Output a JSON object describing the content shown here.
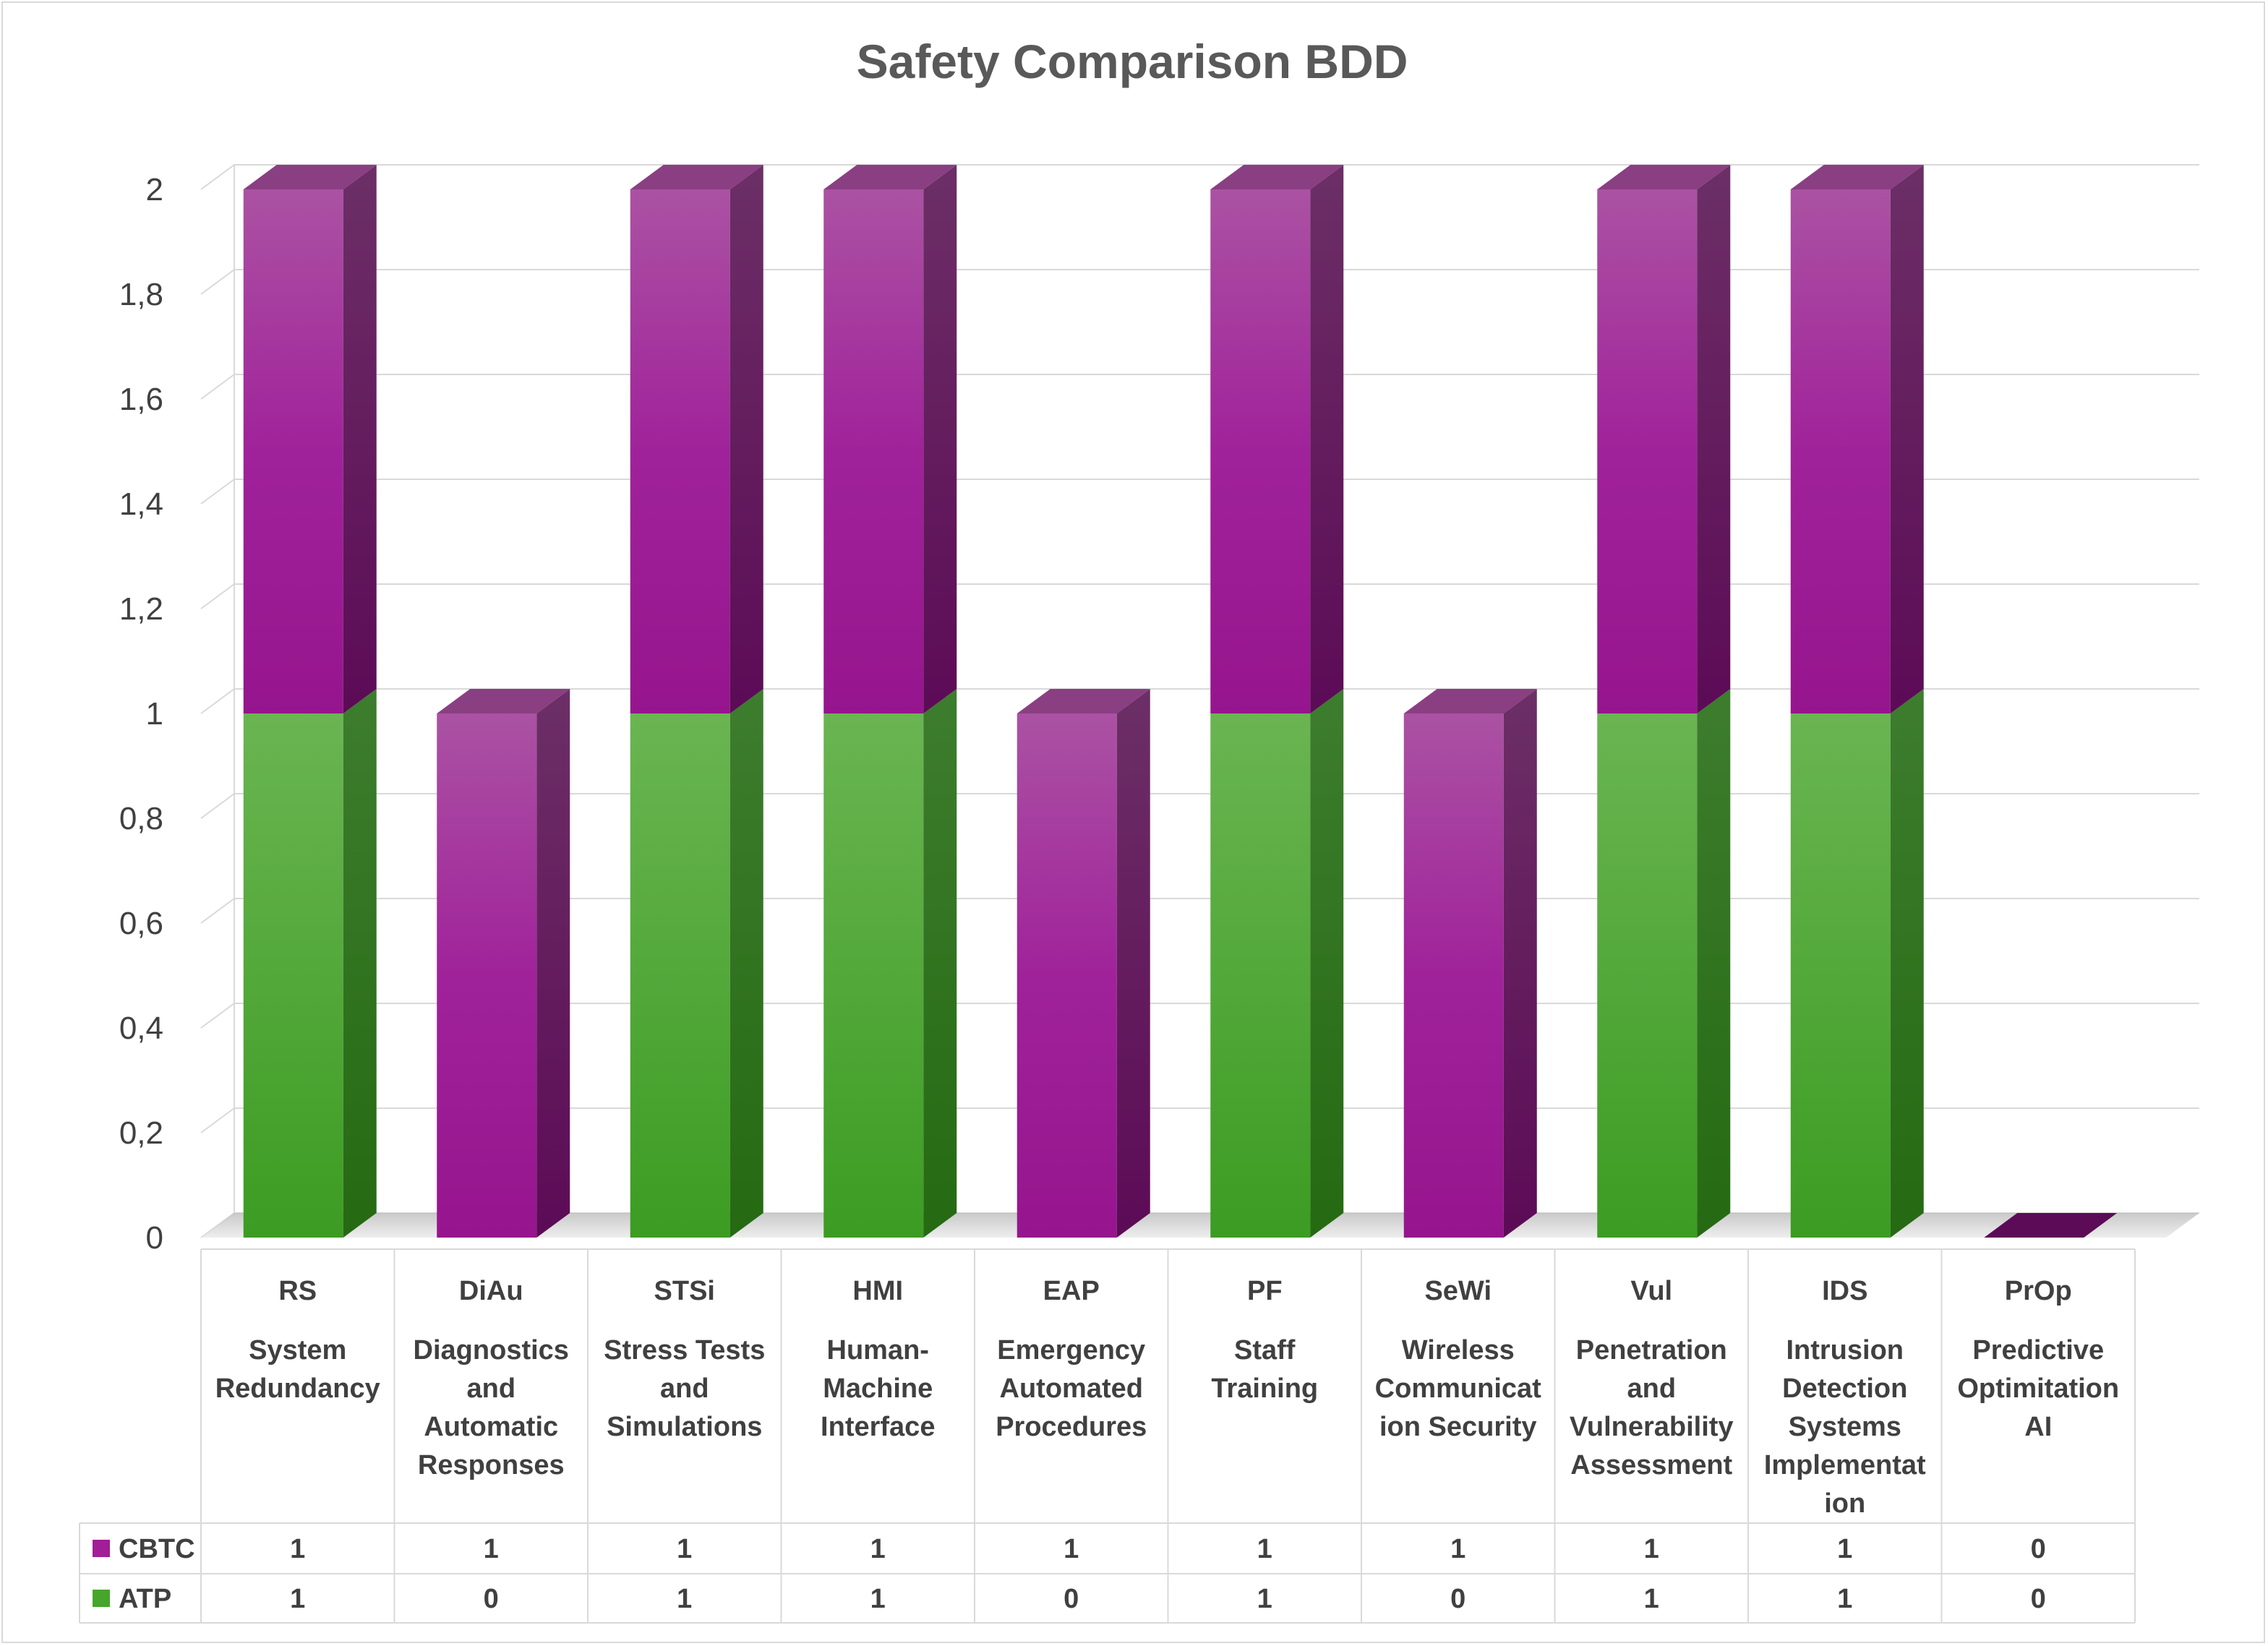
{
  "chart_data": {
    "type": "bar",
    "stacked": true,
    "style": "3d-column",
    "title": "Safety Comparison BDD",
    "ylim": [
      0,
      2
    ],
    "yticks": [
      "0",
      "0,2",
      "0,4",
      "0,6",
      "0,8",
      "1",
      "1,2",
      "1,4",
      "1,6",
      "1,8",
      "2"
    ],
    "grid": true,
    "legend": "data-table-left",
    "categories": [
      {
        "code": "RS",
        "name": [
          "System",
          "Redundancy"
        ]
      },
      {
        "code": "DiAu",
        "name": [
          "Diagnostics",
          "and",
          "Automatic",
          "Responses"
        ]
      },
      {
        "code": "STSi",
        "name": [
          "Stress Tests",
          "and",
          "Simulations"
        ]
      },
      {
        "code": "HMI",
        "name": [
          "Human-",
          "Machine",
          "Interface"
        ]
      },
      {
        "code": "EAP",
        "name": [
          "Emergency",
          "Automated",
          "Procedures"
        ]
      },
      {
        "code": "PF",
        "name": [
          "Staff",
          "Training"
        ]
      },
      {
        "code": "SeWi",
        "name": [
          "Wireless",
          "Communicat",
          "ion Security"
        ]
      },
      {
        "code": "Vul",
        "name": [
          "Penetration",
          "and",
          "Vulnerability",
          "Assessment"
        ]
      },
      {
        "code": "IDS",
        "name": [
          "Intrusion",
          "Detection",
          "Systems",
          "Implementat",
          "ion"
        ]
      },
      {
        "code": "PrOp",
        "name": [
          "Predictive",
          "Optimitation",
          "AI"
        ]
      }
    ],
    "series": [
      {
        "name": "ATP",
        "color": "#46a52a",
        "values": [
          1,
          0,
          1,
          1,
          0,
          1,
          0,
          1,
          1,
          0
        ]
      },
      {
        "name": "CBTC",
        "color": "#a01e96",
        "values": [
          1,
          1,
          1,
          1,
          1,
          1,
          1,
          1,
          1,
          0
        ]
      }
    ],
    "table_row_order": [
      "CBTC",
      "ATP"
    ]
  }
}
